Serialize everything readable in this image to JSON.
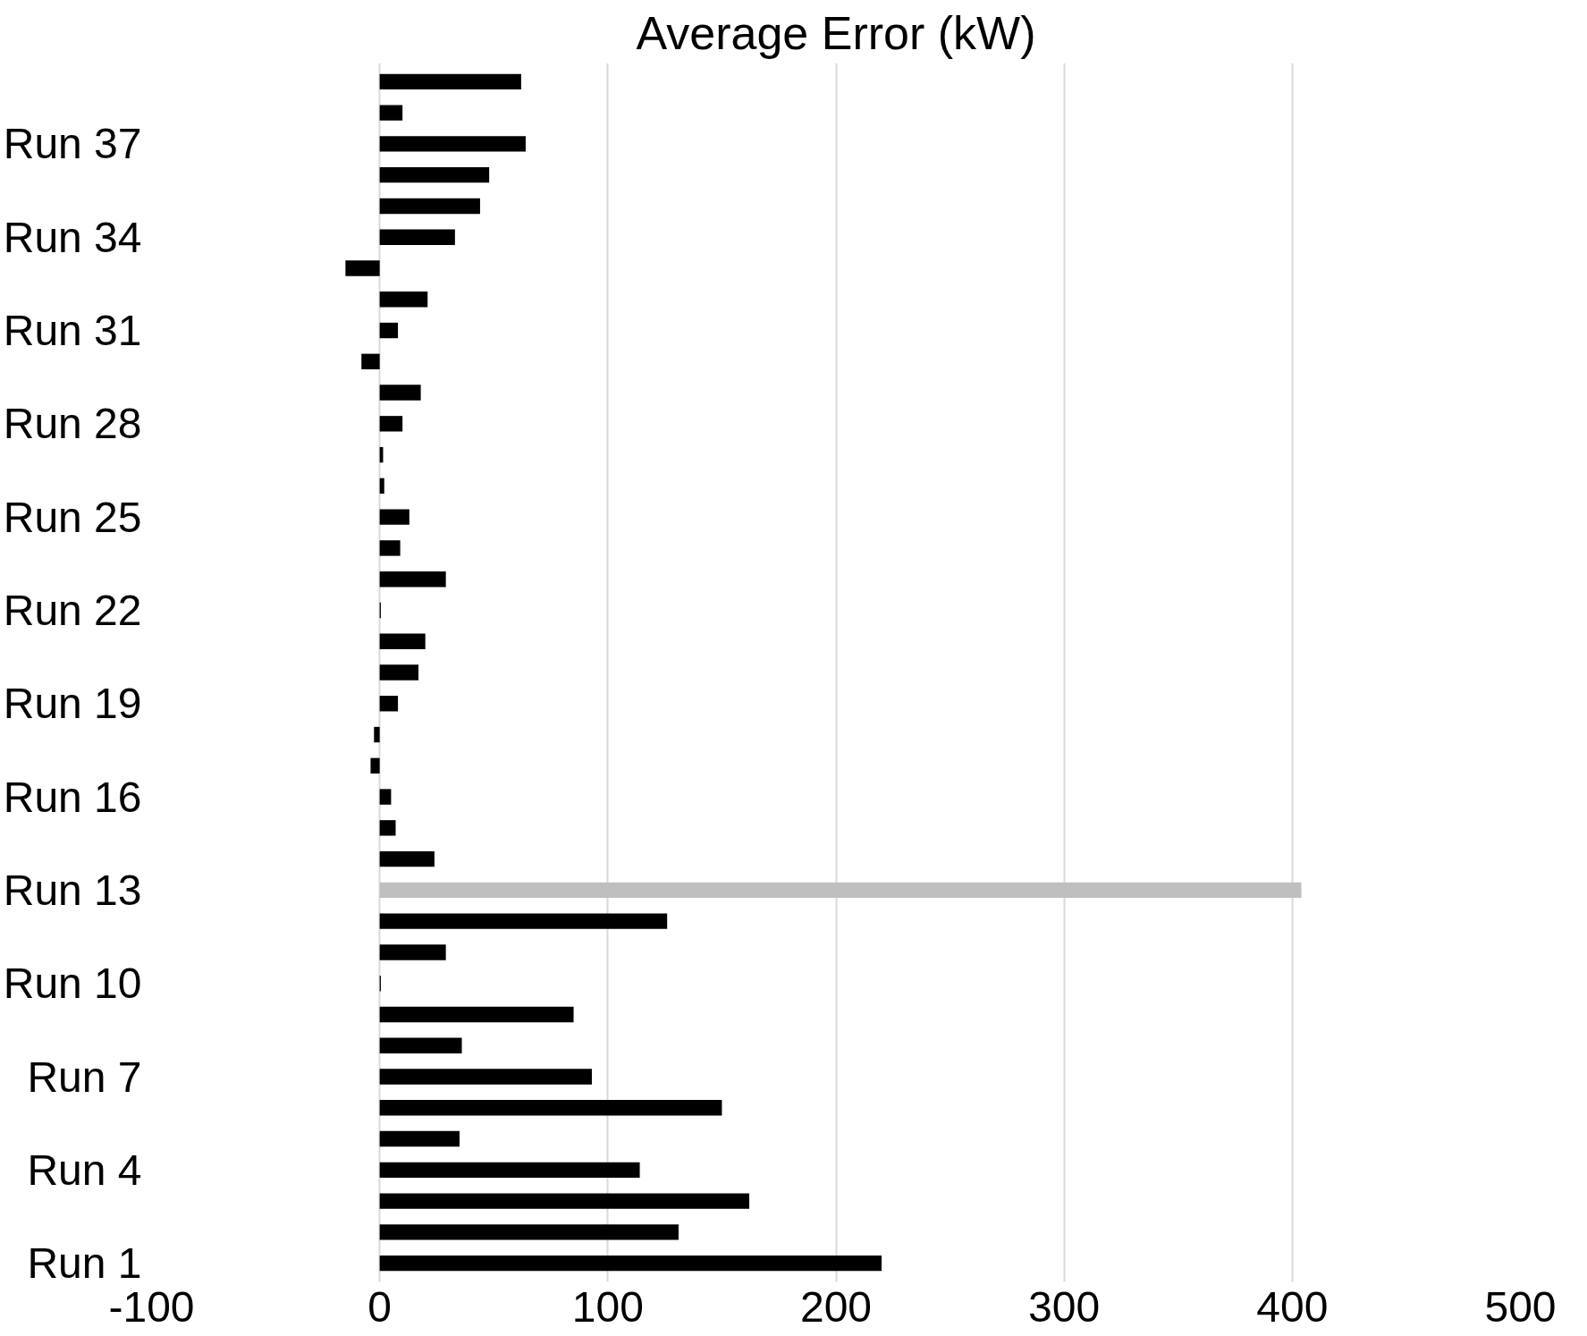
{
  "chart_data": {
    "type": "bar",
    "orientation": "horizontal",
    "title": "Average Error (kW)",
    "categories": [
      null,
      null,
      "Run 37",
      null,
      null,
      "Run 34",
      null,
      null,
      "Run 31",
      null,
      null,
      "Run 28",
      null,
      null,
      "Run 25",
      null,
      null,
      "Run 22",
      null,
      null,
      "Run 19",
      null,
      null,
      "Run 16",
      null,
      null,
      "Run 13",
      null,
      null,
      "Run 10",
      null,
      null,
      "Run 7",
      null,
      null,
      "Run 4",
      null,
      null,
      "Run 1"
    ],
    "values": [
      62,
      10,
      64,
      48,
      44,
      33,
      -15,
      21,
      8,
      -8,
      18,
      10,
      1.5,
      2,
      13,
      9,
      29,
      0.5,
      20,
      17,
      8,
      -2.5,
      -4,
      5,
      7,
      24,
      404,
      126,
      29,
      0.5,
      85,
      36,
      93,
      150,
      35,
      114,
      162,
      131,
      220
    ],
    "colors": [
      "#000000",
      "#000000",
      "#000000",
      "#000000",
      "#000000",
      "#000000",
      "#000000",
      "#000000",
      "#000000",
      "#000000",
      "#000000",
      "#000000",
      "#000000",
      "#000000",
      "#000000",
      "#000000",
      "#000000",
      "#000000",
      "#000000",
      "#000000",
      "#000000",
      "#000000",
      "#000000",
      "#000000",
      "#000000",
      "#000000",
      "#bfbfbf",
      "#000000",
      "#000000",
      "#000000",
      "#000000",
      "#000000",
      "#000000",
      "#000000",
      "#000000",
      "#000000",
      "#000000",
      "#000000",
      "#000000"
    ],
    "xlim": [
      -100,
      500
    ],
    "xticks": [
      -100,
      0,
      100,
      200,
      300,
      400,
      500
    ],
    "grid": "x"
  }
}
